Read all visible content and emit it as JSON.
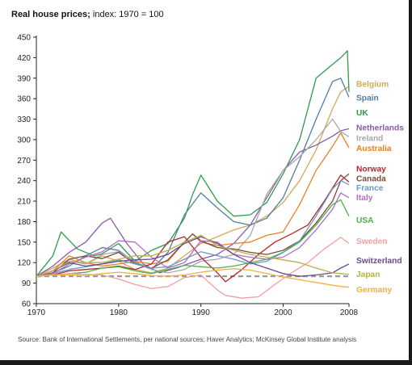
{
  "title_main": "Real house prices;",
  "title_rest": " index: 1970 = 100",
  "source": "Source: Bank of International Settlements, per national sources; Haver Analytics; McKinsey Global Institute analysis",
  "chart_data": {
    "type": "line",
    "title": "Real house prices; index: 1970 = 100",
    "xlabel": "",
    "ylabel": "",
    "xlim": [
      1970,
      2008
    ],
    "ylim": [
      60,
      450
    ],
    "xticks": [
      1970,
      1980,
      1990,
      2000,
      2008
    ],
    "yticks": [
      60,
      90,
      120,
      150,
      180,
      210,
      240,
      270,
      300,
      330,
      360,
      390,
      420,
      450
    ],
    "grid": false,
    "baseline": {
      "value": 100,
      "style": "dashed",
      "color": "#9a9a9a"
    },
    "legend": "right, labels at line ends",
    "series": [
      {
        "name": "Belgium",
        "color": "#d4a85a",
        "x": [
          1970,
          1972,
          1974,
          1976,
          1978,
          1980,
          1982,
          1984,
          1986,
          1988,
          1990,
          1992,
          1994,
          1996,
          1998,
          2000,
          2002,
          2004,
          2006,
          2007,
          2008
        ],
        "y": [
          100,
          112,
          125,
          118,
          130,
          122,
          110,
          105,
          112,
          130,
          148,
          158,
          168,
          175,
          188,
          208,
          240,
          285,
          345,
          370,
          378
        ]
      },
      {
        "name": "Spain",
        "color": "#4f7fa0",
        "x": [
          1970,
          1972,
          1974,
          1976,
          1978,
          1980,
          1982,
          1984,
          1986,
          1988,
          1990,
          1992,
          1994,
          1996,
          1998,
          2000,
          2002,
          2004,
          2006,
          2007,
          2008
        ],
        "y": [
          100,
          105,
          115,
          130,
          142,
          138,
          120,
          110,
          135,
          190,
          222,
          200,
          180,
          175,
          185,
          215,
          270,
          330,
          385,
          390,
          362
        ]
      },
      {
        "name": "UK",
        "color": "#2f9a4e",
        "x": [
          1970,
          1972,
          1973,
          1975,
          1977,
          1978,
          1980,
          1982,
          1984,
          1986,
          1988,
          1989,
          1990,
          1992,
          1994,
          1996,
          1998,
          2000,
          2002,
          2004,
          2006,
          2007,
          2007.8,
          2008
        ],
        "y": [
          100,
          130,
          165,
          140,
          130,
          133,
          148,
          122,
          138,
          148,
          185,
          220,
          248,
          210,
          188,
          190,
          208,
          250,
          300,
          390,
          410,
          420,
          430,
          370
        ]
      },
      {
        "name": "Netherlands",
        "color": "#8a5aa8",
        "x": [
          1970,
          1972,
          1974,
          1976,
          1978,
          1979,
          1981,
          1983,
          1985,
          1987,
          1990,
          1992,
          1994,
          1996,
          1998,
          2000,
          2002,
          2004,
          2006,
          2007,
          2008
        ],
        "y": [
          100,
          115,
          135,
          150,
          178,
          185,
          148,
          118,
          105,
          112,
          125,
          132,
          148,
          175,
          215,
          255,
          282,
          292,
          305,
          313,
          316
        ]
      },
      {
        "name": "Ireland",
        "color": "#a8a8a8",
        "x": [
          1970,
          1972,
          1974,
          1976,
          1978,
          1980,
          1982,
          1984,
          1986,
          1988,
          1990,
          1992,
          1994,
          1996,
          1998,
          2000,
          2002,
          2004,
          2006,
          2007,
          2008
        ],
        "y": [
          100,
          108,
          122,
          118,
          132,
          136,
          122,
          110,
          105,
          110,
          122,
          125,
          132,
          160,
          220,
          255,
          275,
          300,
          330,
          312,
          304
        ]
      },
      {
        "name": "Australia",
        "color": "#e8802a",
        "x": [
          1970,
          1972,
          1974,
          1976,
          1978,
          1980,
          1982,
          1984,
          1986,
          1988,
          1989,
          1990,
          1992,
          1994,
          1996,
          1998,
          2000,
          2002,
          2004,
          2006,
          2007,
          2008
        ],
        "y": [
          100,
          108,
          130,
          120,
          115,
          118,
          122,
          118,
          122,
          150,
          162,
          150,
          145,
          148,
          150,
          160,
          165,
          205,
          255,
          290,
          310,
          288
        ]
      },
      {
        "name": "Norway",
        "color": "#b82424",
        "x": [
          1970,
          1972,
          1974,
          1976,
          1978,
          1980,
          1982,
          1984,
          1986,
          1988,
          1990,
          1992,
          1993,
          1995,
          1997,
          1999,
          2001,
          2003,
          2005,
          2007,
          2008
        ],
        "y": [
          100,
          102,
          108,
          110,
          112,
          115,
          110,
          118,
          150,
          158,
          128,
          105,
          92,
          110,
          132,
          150,
          162,
          175,
          210,
          248,
          238
        ]
      },
      {
        "name": "Canada",
        "color": "#7a4a3a",
        "x": [
          1970,
          1972,
          1974,
          1976,
          1978,
          1980,
          1982,
          1984,
          1986,
          1988,
          1989,
          1990,
          1992,
          1994,
          1996,
          1998,
          2000,
          2002,
          2004,
          2006,
          2007,
          2008
        ],
        "y": [
          100,
          105,
          125,
          130,
          126,
          135,
          118,
          112,
          124,
          150,
          162,
          152,
          142,
          140,
          135,
          132,
          138,
          152,
          178,
          210,
          240,
          250
        ]
      },
      {
        "name": "France",
        "color": "#6a98c8",
        "x": [
          1970,
          1972,
          1974,
          1976,
          1978,
          1980,
          1982,
          1984,
          1986,
          1988,
          1990,
          1992,
          1994,
          1996,
          1998,
          2000,
          2002,
          2004,
          2006,
          2007,
          2008
        ],
        "y": [
          100,
          104,
          110,
          114,
          118,
          124,
          118,
          112,
          114,
          125,
          136,
          130,
          125,
          118,
          122,
          135,
          152,
          188,
          228,
          240,
          234
        ]
      },
      {
        "name": "Italy",
        "color": "#b26ad0",
        "x": [
          1970,
          1972,
          1974,
          1976,
          1978,
          1980,
          1982,
          1984,
          1986,
          1988,
          1990,
          1992,
          1994,
          1996,
          1998,
          2000,
          2002,
          2004,
          2006,
          2007,
          2008
        ],
        "y": [
          100,
          104,
          118,
          128,
          136,
          152,
          150,
          128,
          112,
          120,
          152,
          150,
          132,
          128,
          125,
          128,
          142,
          168,
          198,
          222,
          215
        ]
      },
      {
        "name": "USA",
        "color": "#4ab34a",
        "x": [
          1970,
          1972,
          1974,
          1976,
          1978,
          1980,
          1982,
          1984,
          1986,
          1988,
          1990,
          1992,
          1994,
          1996,
          1998,
          2000,
          2002,
          2004,
          2006,
          2007,
          2008
        ],
        "y": [
          100,
          102,
          104,
          106,
          112,
          114,
          108,
          104,
          110,
          116,
          114,
          112,
          115,
          120,
          125,
          135,
          150,
          175,
          205,
          212,
          188
        ]
      },
      {
        "name": "Sweden",
        "color": "#f0a0a0",
        "x": [
          1970,
          1972,
          1974,
          1976,
          1978,
          1980,
          1982,
          1984,
          1986,
          1988,
          1990,
          1992,
          1993,
          1995,
          1997,
          1999,
          2001,
          2003,
          2005,
          2007,
          2008
        ],
        "y": [
          100,
          102,
          104,
          103,
          102,
          96,
          88,
          82,
          85,
          98,
          102,
          80,
          72,
          68,
          70,
          88,
          105,
          120,
          140,
          157,
          148
        ]
      },
      {
        "name": "Switzerland",
        "color": "#6a4a8a",
        "x": [
          1970,
          1972,
          1974,
          1976,
          1978,
          1980,
          1982,
          1984,
          1986,
          1988,
          1990,
          1992,
          1994,
          1996,
          1998,
          2000,
          2002,
          2004,
          2006,
          2007,
          2008
        ],
        "y": [
          100,
          108,
          120,
          115,
          118,
          122,
          124,
          125,
          132,
          148,
          158,
          148,
          132,
          120,
          112,
          104,
          100,
          102,
          105,
          112,
          118
        ]
      },
      {
        "name": "Japan",
        "color": "#b8b050",
        "x": [
          1970,
          1972,
          1974,
          1976,
          1978,
          1980,
          1982,
          1984,
          1986,
          1988,
          1990,
          1992,
          1994,
          1996,
          1998,
          2000,
          2002,
          2004,
          2006,
          2007,
          2008
        ],
        "y": [
          100,
          108,
          122,
          120,
          120,
          125,
          130,
          130,
          138,
          150,
          160,
          145,
          138,
          132,
          128,
          124,
          120,
          112,
          105,
          104,
          103
        ]
      },
      {
        "name": "Germany",
        "color": "#f0b040",
        "x": [
          1970,
          1972,
          1974,
          1976,
          1978,
          1980,
          1982,
          1984,
          1986,
          1988,
          1990,
          1992,
          1994,
          1996,
          1998,
          2000,
          2002,
          2004,
          2006,
          2007,
          2008
        ],
        "y": [
          100,
          102,
          102,
          101,
          104,
          106,
          104,
          101,
          100,
          102,
          106,
          109,
          111,
          109,
          104,
          99,
          95,
          91,
          87,
          85,
          84
        ]
      }
    ],
    "labels": [
      {
        "series": "Belgium",
        "text": "Belgium",
        "y": 382,
        "bold": false
      },
      {
        "series": "Spain",
        "text": "Spain",
        "y": 362,
        "bold": false
      },
      {
        "series": "UK",
        "text": "UK",
        "y": 340,
        "bold": true
      },
      {
        "series": "Netherlands",
        "text": "Netherlands",
        "y": 318,
        "bold": false
      },
      {
        "series": "Ireland",
        "text": "Ireland",
        "y": 303,
        "bold": false
      },
      {
        "series": "Australia",
        "text": "Australia",
        "y": 288,
        "bold": false
      },
      {
        "series": "Norway",
        "text": "Norway",
        "y": 258,
        "bold": false
      },
      {
        "series": "Canada",
        "text": "Canada",
        "y": 244,
        "bold": false
      },
      {
        "series": "France",
        "text": "France",
        "y": 230,
        "bold": false
      },
      {
        "series": "Italy",
        "text": "Italy",
        "y": 216,
        "bold": false
      },
      {
        "series": "USA",
        "text": "USA",
        "y": 183,
        "bold": true
      },
      {
        "series": "Sweden",
        "text": "Sweden",
        "y": 152,
        "bold": false
      },
      {
        "series": "Switzerland",
        "text": "Switzerland",
        "y": 124,
        "bold": false
      },
      {
        "series": "Japan",
        "text": "Japan",
        "y": 104,
        "bold": false
      },
      {
        "series": "Germany",
        "text": "Germany",
        "y": 81,
        "bold": false
      }
    ]
  }
}
